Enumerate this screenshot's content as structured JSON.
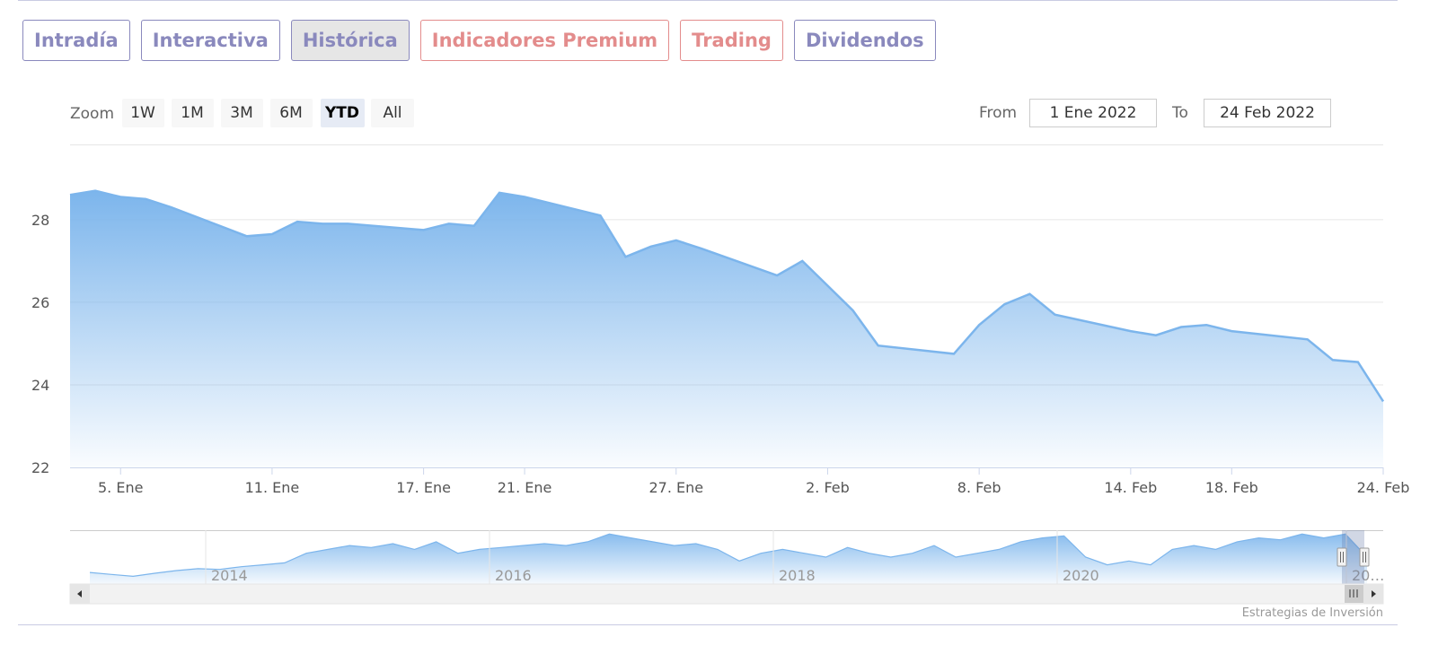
{
  "tabs": [
    {
      "label": "Intradía",
      "color": "#8a89bd",
      "active": false
    },
    {
      "label": "Interactiva",
      "color": "#8a89bd",
      "active": false
    },
    {
      "label": "Histórica",
      "color": "#8a89bd",
      "active": true
    },
    {
      "label": "Indicadores Premium",
      "color": "#e38c8c",
      "active": false
    },
    {
      "label": "Trading",
      "color": "#e38c8c",
      "active": false
    },
    {
      "label": "Dividendos",
      "color": "#8a89bd",
      "active": false
    }
  ],
  "range_selector": {
    "zoom_label": "Zoom",
    "buttons": [
      "1W",
      "1M",
      "3M",
      "6M",
      "YTD",
      "All"
    ],
    "selected": "YTD",
    "from_label": "From",
    "from_value": "1 Ene 2022",
    "to_label": "To",
    "to_value": "24 Feb 2022"
  },
  "credit": "Estrategias de Inversión",
  "colors": {
    "area_top": "#7cb5ec",
    "line": "#7cb5ec",
    "grid": "#e6e6e6"
  },
  "chart_data": {
    "type": "area",
    "x_dates": [
      "2022-01-03",
      "2022-01-04",
      "2022-01-05",
      "2022-01-06",
      "2022-01-07",
      "2022-01-10",
      "2022-01-11",
      "2022-01-12",
      "2022-01-13",
      "2022-01-14",
      "2022-01-17",
      "2022-01-18",
      "2022-01-19",
      "2022-01-20",
      "2022-01-21",
      "2022-01-24",
      "2022-01-25",
      "2022-01-26",
      "2022-01-27",
      "2022-01-28",
      "2022-01-31",
      "2022-02-01",
      "2022-02-02",
      "2022-02-03",
      "2022-02-04",
      "2022-02-07",
      "2022-02-08",
      "2022-02-09",
      "2022-02-10",
      "2022-02-11",
      "2022-02-14",
      "2022-02-15",
      "2022-02-16",
      "2022-02-17",
      "2022-02-18",
      "2022-02-21",
      "2022-02-22",
      "2022-02-23",
      "2022-02-24"
    ],
    "values": [
      28.6,
      28.7,
      28.55,
      28.5,
      28.3,
      27.6,
      27.65,
      27.95,
      27.9,
      27.9,
      27.75,
      27.9,
      27.85,
      28.65,
      28.55,
      28.1,
      27.1,
      27.35,
      27.5,
      27.3,
      26.65,
      27.0,
      26.4,
      25.8,
      24.95,
      24.75,
      25.45,
      25.95,
      26.2,
      25.7,
      25.3,
      25.2,
      25.4,
      25.45,
      25.3,
      25.1,
      24.6,
      24.55,
      23.6
    ],
    "ylim": [
      22,
      29.8
    ],
    "yticks": [
      22,
      24,
      26,
      28
    ],
    "xticks": [
      {
        "date": "2022-01-05",
        "label": "5. Ene"
      },
      {
        "date": "2022-01-11",
        "label": "11. Ene"
      },
      {
        "date": "2022-01-17",
        "label": "17. Ene"
      },
      {
        "date": "2022-01-21",
        "label": "21. Ene"
      },
      {
        "date": "2022-01-27",
        "label": "27. Ene"
      },
      {
        "date": "2022-02-02",
        "label": "2. Feb"
      },
      {
        "date": "2022-02-08",
        "label": "8. Feb"
      },
      {
        "date": "2022-02-14",
        "label": "14. Feb"
      },
      {
        "date": "2022-02-18",
        "label": "18. Feb"
      },
      {
        "date": "2022-02-24",
        "label": "24. Feb"
      }
    ],
    "xlabel": "",
    "ylabel": "",
    "navigator": {
      "year_labels": [
        "2014",
        "2016",
        "2018",
        "2020",
        "20…"
      ],
      "series": [
        21,
        20.5,
        20,
        20.8,
        21.5,
        22,
        21.8,
        22.5,
        23,
        23.5,
        26,
        27,
        28,
        27.5,
        28.5,
        27,
        29,
        26,
        27,
        27.5,
        28,
        28.5,
        28,
        29,
        31,
        30,
        29,
        28,
        28.5,
        27,
        24,
        26,
        27,
        26,
        25,
        27.5,
        26,
        25,
        26,
        28,
        25,
        26,
        27,
        29,
        30,
        30.5,
        25,
        23,
        24,
        23,
        27,
        28,
        27,
        29,
        30,
        29.5,
        31,
        30,
        31,
        25
      ],
      "selected_range": [
        "2022-01-01",
        "2022-02-24"
      ]
    }
  }
}
